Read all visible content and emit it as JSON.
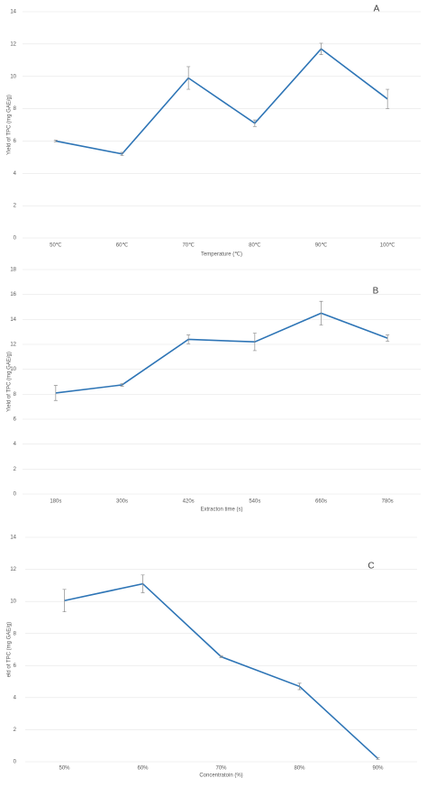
{
  "chart_data": [
    {
      "type": "line",
      "annotation": "A",
      "x_label": "Temperature (℃)",
      "y_label": "Yield of TPC (mg GAE/g)",
      "categories": [
        "50℃",
        "60℃",
        "70℃",
        "80℃",
        "90℃",
        "100℃"
      ],
      "values": [
        6.0,
        5.2,
        9.9,
        7.1,
        11.7,
        8.6
      ],
      "errors": [
        0.05,
        0.1,
        0.7,
        0.2,
        0.35,
        0.6
      ],
      "color": "#2e75b6",
      "ylim": [
        0,
        14
      ],
      "yticks": [
        0,
        2,
        4,
        6,
        8,
        10,
        12,
        14
      ],
      "grid": true
    },
    {
      "type": "line",
      "annotation": "B",
      "x_label": "Extracton time (s)",
      "y_label": "Yield of TPC (mg GAE/g)",
      "categories": [
        "180s",
        "300s",
        "420s",
        "540s",
        "660s",
        "780s"
      ],
      "values": [
        8.1,
        8.75,
        12.4,
        12.2,
        14.5,
        12.5
      ],
      "errors": [
        0.6,
        0.1,
        0.35,
        0.7,
        0.95,
        0.25
      ],
      "color": "#2e75b6",
      "ylim": [
        0,
        18
      ],
      "yticks": [
        0,
        2,
        4,
        6,
        8,
        10,
        12,
        14,
        16,
        18
      ],
      "grid": true
    },
    {
      "type": "line",
      "annotation": "C",
      "x_label": "Concentratoin (%)",
      "y_label": "eld of TPC (mg GAE/g)",
      "categories": [
        "50%",
        "60%",
        "70%",
        "80%",
        "90%"
      ],
      "values": [
        10.05,
        11.1,
        6.55,
        4.7,
        0.2
      ],
      "errors": [
        0.7,
        0.55,
        0.05,
        0.2,
        0.05
      ],
      "color": "#2e75b6",
      "ylim": [
        0,
        14
      ],
      "yticks": [
        0,
        2,
        4,
        6,
        8,
        10,
        12,
        14
      ],
      "grid": true
    }
  ]
}
